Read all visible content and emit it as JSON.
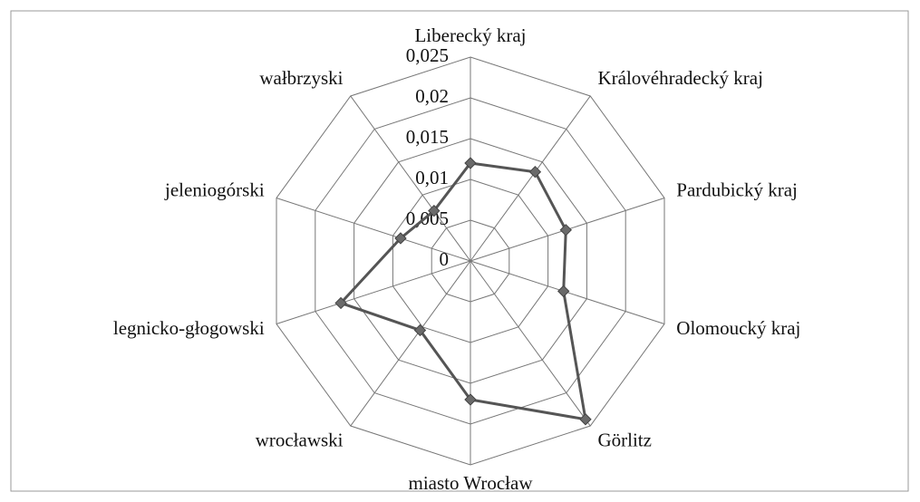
{
  "chart_data": {
    "type": "radar",
    "categories": [
      "Liberecký kraj",
      "Královéhradecký kraj",
      "Pardubický kraj",
      "Olomoucký kraj",
      "Görlitz",
      "miasto Wrocław",
      "wrocławski",
      "legnicko-głogowski",
      "jeleniogórski",
      "wałbrzyski"
    ],
    "values": [
      0.012,
      0.0135,
      0.0123,
      0.012,
      0.024,
      0.017,
      0.0105,
      0.0167,
      0.009,
      0.0076
    ],
    "color": "#555555",
    "ylim": [
      0,
      0.025
    ],
    "yticks": [
      0,
      {
        "value": 0.005,
        "label": "0,005"
      },
      {
        "value": 0.01,
        "label": "0,01"
      },
      {
        "value": 0.015,
        "label": "0,015"
      },
      {
        "value": 0.02,
        "label": "0,02"
      },
      {
        "value": 0.025,
        "label": "0,025"
      }
    ],
    "grid": true
  }
}
